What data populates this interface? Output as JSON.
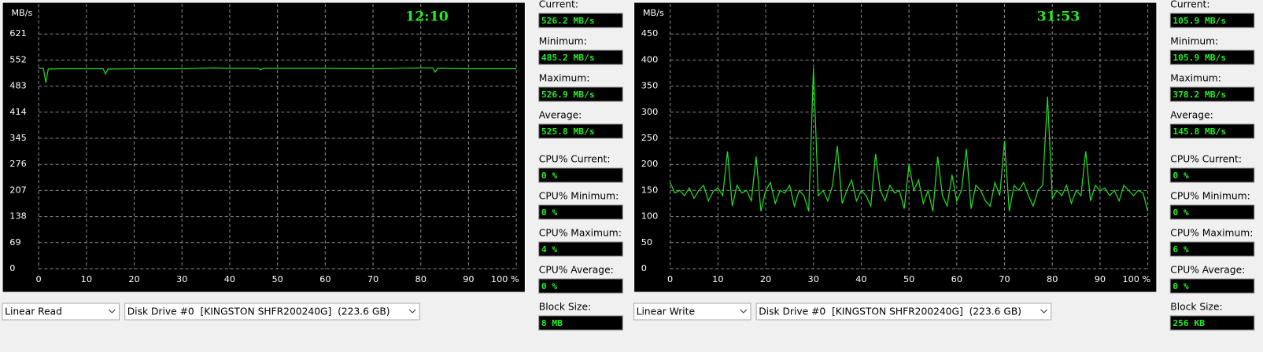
{
  "chart_data": [
    {
      "type": "line",
      "y_label": "MB/s",
      "timer": "12:10",
      "ylim": [
        0,
        690
      ],
      "yticks": [
        0,
        69,
        138,
        207,
        276,
        345,
        414,
        483,
        552,
        621
      ],
      "xlim": [
        0,
        100
      ],
      "xticks": [
        0,
        10,
        20,
        30,
        40,
        50,
        60,
        70,
        80,
        90,
        {
          "value": 100,
          "label": "100 %"
        }
      ],
      "grid": true,
      "x": [
        0,
        1,
        1.5,
        2,
        5,
        10,
        13.5,
        14,
        14.5,
        20,
        30,
        37,
        40,
        46,
        46.5,
        47,
        55,
        60,
        70,
        80,
        82.5,
        83,
        83.5,
        90,
        100
      ],
      "series": [
        {
          "color": "#22dd22",
          "values": [
            530,
            530,
            492,
            528,
            529,
            529,
            529,
            515,
            528,
            529,
            529,
            531,
            530,
            530,
            526,
            530,
            530,
            530,
            529,
            531,
            531,
            520,
            530,
            529,
            529
          ]
        }
      ]
    },
    {
      "type": "line",
      "y_label": "MB/s",
      "timer": "31:53",
      "ylim": [
        0,
        500
      ],
      "yticks": [
        0,
        50,
        100,
        150,
        200,
        250,
        300,
        350,
        400,
        450
      ],
      "xlim": [
        0,
        100
      ],
      "xticks": [
        0,
        10,
        20,
        30,
        40,
        50,
        60,
        70,
        80,
        90,
        {
          "value": 100,
          "label": "100 %"
        }
      ],
      "grid": true,
      "x": [
        0,
        1,
        2,
        3,
        4,
        5,
        6,
        7,
        8,
        9,
        10,
        11,
        12,
        13,
        14,
        15,
        16,
        17,
        18,
        19,
        20,
        21,
        22,
        23,
        24,
        25,
        26,
        27,
        28,
        29,
        30,
        31,
        32,
        33,
        34,
        35,
        36,
        37,
        38,
        39,
        40,
        41,
        42,
        43,
        44,
        45,
        46,
        47,
        48,
        49,
        50,
        51,
        52,
        53,
        54,
        55,
        56,
        57,
        58,
        59,
        60,
        61,
        62,
        63,
        64,
        65,
        66,
        67,
        68,
        69,
        70,
        71,
        72,
        73,
        74,
        75,
        76,
        77,
        78,
        79,
        80,
        81,
        82,
        83,
        84,
        85,
        86,
        87,
        88,
        89,
        90,
        91,
        92,
        93,
        94,
        95,
        96,
        97,
        98,
        99,
        100
      ],
      "series": [
        {
          "color": "#22dd22",
          "values": [
            165,
            145,
            150,
            140,
            155,
            135,
            150,
            160,
            130,
            148,
            155,
            140,
            225,
            120,
            160,
            145,
            150,
            130,
            215,
            110,
            150,
            165,
            125,
            150,
            145,
            160,
            120,
            150,
            140,
            110,
            385,
            140,
            150,
            130,
            160,
            235,
            125,
            150,
            170,
            130,
            150,
            140,
            120,
            220,
            150,
            130,
            160,
            145,
            150,
            115,
            200,
            150,
            170,
            125,
            150,
            110,
            215,
            140,
            120,
            180,
            130,
            150,
            230,
            115,
            160,
            150,
            130,
            120,
            165,
            140,
            245,
            110,
            160,
            150,
            165,
            140,
            120,
            150,
            160,
            330,
            135,
            150,
            140,
            160,
            125,
            150,
            140,
            225,
            130,
            160,
            150,
            155,
            140,
            150,
            130,
            160,
            150,
            140,
            150,
            145,
            110
          ]
        }
      ]
    }
  ],
  "panels": [
    {
      "stats": [
        {
          "label": "Current:",
          "value": "526.2 MB/s"
        },
        {
          "label": "Minimum:",
          "value": "485.2 MB/s"
        },
        {
          "label": "Maximum:",
          "value": "526.9 MB/s"
        },
        {
          "label": "Average:",
          "value": "525.8 MB/s"
        },
        {
          "label": "CPU% Current:",
          "value": "0 %"
        },
        {
          "label": "CPU% Minimum:",
          "value": "0 %"
        },
        {
          "label": "CPU% Maximum:",
          "value": "4 %"
        },
        {
          "label": "CPU% Average:",
          "value": "0 %"
        },
        {
          "label": "Block Size:",
          "value": "8 MB"
        }
      ],
      "mode": "Linear Read",
      "drive": "Disk Drive #0  [KINGSTON SHFR200240G]  (223.6 GB)"
    },
    {
      "stats": [
        {
          "label": "Current:",
          "value": "105.9 MB/s"
        },
        {
          "label": "Minimum:",
          "value": "105.9 MB/s"
        },
        {
          "label": "Maximum:",
          "value": "378.2 MB/s"
        },
        {
          "label": "Average:",
          "value": "145.8 MB/s"
        },
        {
          "label": "CPU% Current:",
          "value": "0 %"
        },
        {
          "label": "CPU% Minimum:",
          "value": "0 %"
        },
        {
          "label": "CPU% Maximum:",
          "value": "6 %"
        },
        {
          "label": "CPU% Average:",
          "value": "0 %"
        },
        {
          "label": "Block Size:",
          "value": "256 KB"
        }
      ],
      "mode": "Linear Write",
      "drive": "Disk Drive #0  [KINGSTON SHFR200240G]  (223.6 GB)"
    }
  ]
}
